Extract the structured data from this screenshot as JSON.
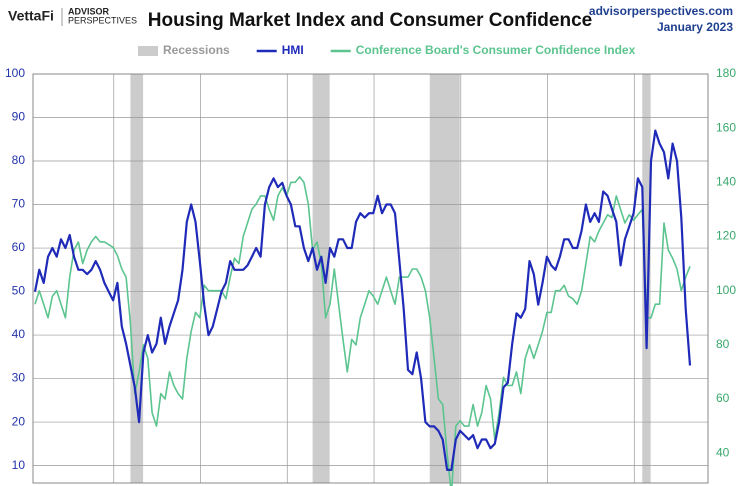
{
  "chart_data": {
    "type": "line",
    "title": "Housing Market Index and Consumer Confidence",
    "logo": "VettaFi",
    "logo_sub": [
      "ADVISOR",
      "PERSPECTIVES"
    ],
    "site": "advisorperspectives.com",
    "date": "January 2023",
    "legend": "top",
    "recession_name": "Recessions",
    "recession_color": "#cccccc",
    "recessions": [
      [
        22,
        24
      ],
      [
        64,
        67
      ],
      [
        91,
        97
      ],
      [
        140,
        141
      ]
    ],
    "xticks": [
      20,
      40,
      60,
      80,
      100,
      120,
      140
    ],
    "ylim": [
      6,
      100
    ],
    "yticks": [
      10,
      20,
      30,
      40,
      50,
      60,
      70,
      80,
      90,
      100
    ],
    "y2lim": [
      29,
      180
    ],
    "y2ticks": [
      40,
      60,
      80,
      100,
      120,
      140,
      160,
      180
    ],
    "grid": true,
    "series": [
      {
        "name": "HMI",
        "color": "#1f2bb8",
        "axis": "y",
        "values": [
          50,
          55,
          52,
          58,
          60,
          58,
          62,
          60,
          63,
          58,
          55,
          55,
          54,
          55,
          57,
          55,
          52,
          50,
          48,
          52,
          42,
          38,
          33,
          28,
          20,
          36,
          40,
          36,
          38,
          44,
          38,
          42,
          45,
          48,
          55,
          66,
          70,
          66,
          57,
          47,
          40,
          42,
          46,
          50,
          52,
          57,
          55,
          55,
          55,
          56,
          58,
          60,
          58,
          70,
          74,
          76,
          74,
          75,
          72,
          70,
          65,
          65,
          60,
          57,
          60,
          55,
          58,
          52,
          60,
          58,
          62,
          62,
          60,
          60,
          66,
          68,
          67,
          68,
          68,
          72,
          68,
          70,
          70,
          68,
          57,
          46,
          32,
          31,
          36,
          30,
          20,
          19,
          19,
          18,
          16,
          9,
          9,
          16,
          18,
          17,
          16,
          17,
          14,
          16,
          16,
          14,
          15,
          20,
          28,
          29,
          38,
          45,
          44,
          46,
          57,
          54,
          47,
          52,
          58,
          56,
          55,
          58,
          62,
          62,
          60,
          60,
          64,
          70,
          66,
          68,
          66,
          73,
          72,
          69,
          66,
          56,
          62,
          65,
          68,
          76,
          74,
          37,
          80,
          87,
          84,
          82,
          76,
          84,
          80,
          67,
          46,
          33
        ]
      },
      {
        "name": "Conference Board's Consumer Confidence Index",
        "color": "#5cc48f",
        "axis": "y2",
        "values": [
          95,
          100,
          95,
          90,
          98,
          100,
          95,
          90,
          105,
          115,
          118,
          110,
          115,
          118,
          120,
          118,
          118,
          117,
          116,
          113,
          108,
          105,
          88,
          62,
          70,
          80,
          75,
          55,
          50,
          62,
          60,
          70,
          65,
          62,
          60,
          75,
          85,
          92,
          90,
          102,
          100,
          100,
          100,
          100,
          97,
          105,
          112,
          110,
          120,
          125,
          130,
          132,
          135,
          135,
          130,
          126,
          135,
          138,
          135,
          140,
          140,
          142,
          140,
          132,
          115,
          118,
          110,
          90,
          95,
          108,
          95,
          82,
          70,
          82,
          80,
          90,
          95,
          100,
          98,
          95,
          100,
          105,
          100,
          95,
          105,
          105,
          105,
          108,
          108,
          105,
          100,
          90,
          75,
          60,
          58,
          40,
          25,
          50,
          52,
          50,
          50,
          58,
          50,
          55,
          65,
          60,
          45,
          55,
          68,
          65,
          65,
          70,
          62,
          75,
          80,
          75,
          80,
          85,
          92,
          92,
          100,
          100,
          102,
          98,
          97,
          95,
          100,
          110,
          120,
          118,
          122,
          125,
          128,
          127,
          135,
          130,
          125,
          128,
          126,
          128,
          130,
          90,
          90,
          95,
          95,
          125,
          115,
          112,
          108,
          100,
          105,
          109
        ]
      }
    ]
  }
}
